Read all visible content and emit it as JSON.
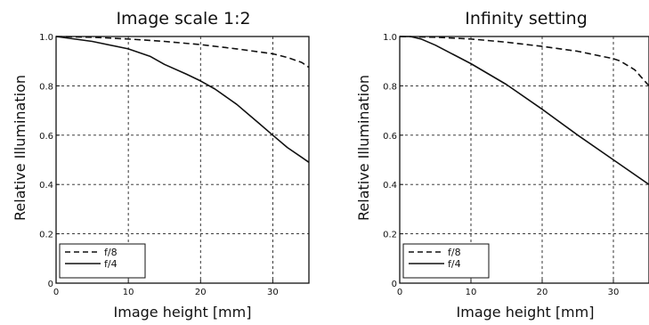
{
  "chart_data": [
    {
      "type": "line",
      "title": "Image scale 1:2",
      "xlabel": "Image height [mm]",
      "ylabel": "Relative Illumination",
      "xlim": [
        0,
        35
      ],
      "ylim": [
        0,
        1.0
      ],
      "x_ticks": [
        "0",
        "10",
        "20",
        "30"
      ],
      "y_ticks": [
        "0",
        "0.2",
        "0.4",
        "0.6",
        "0.8",
        "1.0"
      ],
      "grid": true,
      "legend_position": "bottom-left",
      "series": [
        {
          "name": "f/8",
          "style": "dashed",
          "color": "#111111",
          "x": [
            0,
            5,
            10,
            15,
            20,
            25,
            30,
            32,
            34,
            35
          ],
          "y": [
            1.0,
            0.997,
            0.99,
            0.98,
            0.967,
            0.95,
            0.93,
            0.915,
            0.895,
            0.875
          ]
        },
        {
          "name": "f/4",
          "style": "solid",
          "color": "#111111",
          "x": [
            0,
            5,
            10,
            13,
            15,
            18,
            20,
            22,
            25,
            28,
            30,
            32,
            34,
            35
          ],
          "y": [
            1.0,
            0.98,
            0.95,
            0.92,
            0.887,
            0.848,
            0.82,
            0.787,
            0.725,
            0.65,
            0.6,
            0.55,
            0.51,
            0.49
          ]
        }
      ]
    },
    {
      "type": "line",
      "title": "Infinity setting",
      "xlabel": "Image height [mm]",
      "ylabel": "Relative Illumination",
      "xlim": [
        0,
        35
      ],
      "ylim": [
        0,
        1.0
      ],
      "x_ticks": [
        "0",
        "10",
        "20",
        "30"
      ],
      "y_ticks": [
        "0",
        "0.2",
        "0.4",
        "0.6",
        "0.8",
        "1.0"
      ],
      "grid": true,
      "legend_position": "bottom-left",
      "series": [
        {
          "name": "f/8",
          "style": "dashed",
          "color": "#111111",
          "x": [
            0,
            5,
            10,
            15,
            20,
            25,
            30,
            31,
            33,
            35
          ],
          "y": [
            1.0,
            0.997,
            0.99,
            0.977,
            0.96,
            0.94,
            0.91,
            0.9,
            0.865,
            0.8
          ]
        },
        {
          "name": "f/4",
          "style": "solid",
          "color": "#111111",
          "x": [
            0,
            1.5,
            3,
            5,
            10,
            15,
            20,
            25,
            30,
            35
          ],
          "y": [
            1.0,
            1.0,
            0.99,
            0.965,
            0.89,
            0.805,
            0.705,
            0.6,
            0.5,
            0.4
          ]
        }
      ]
    }
  ]
}
